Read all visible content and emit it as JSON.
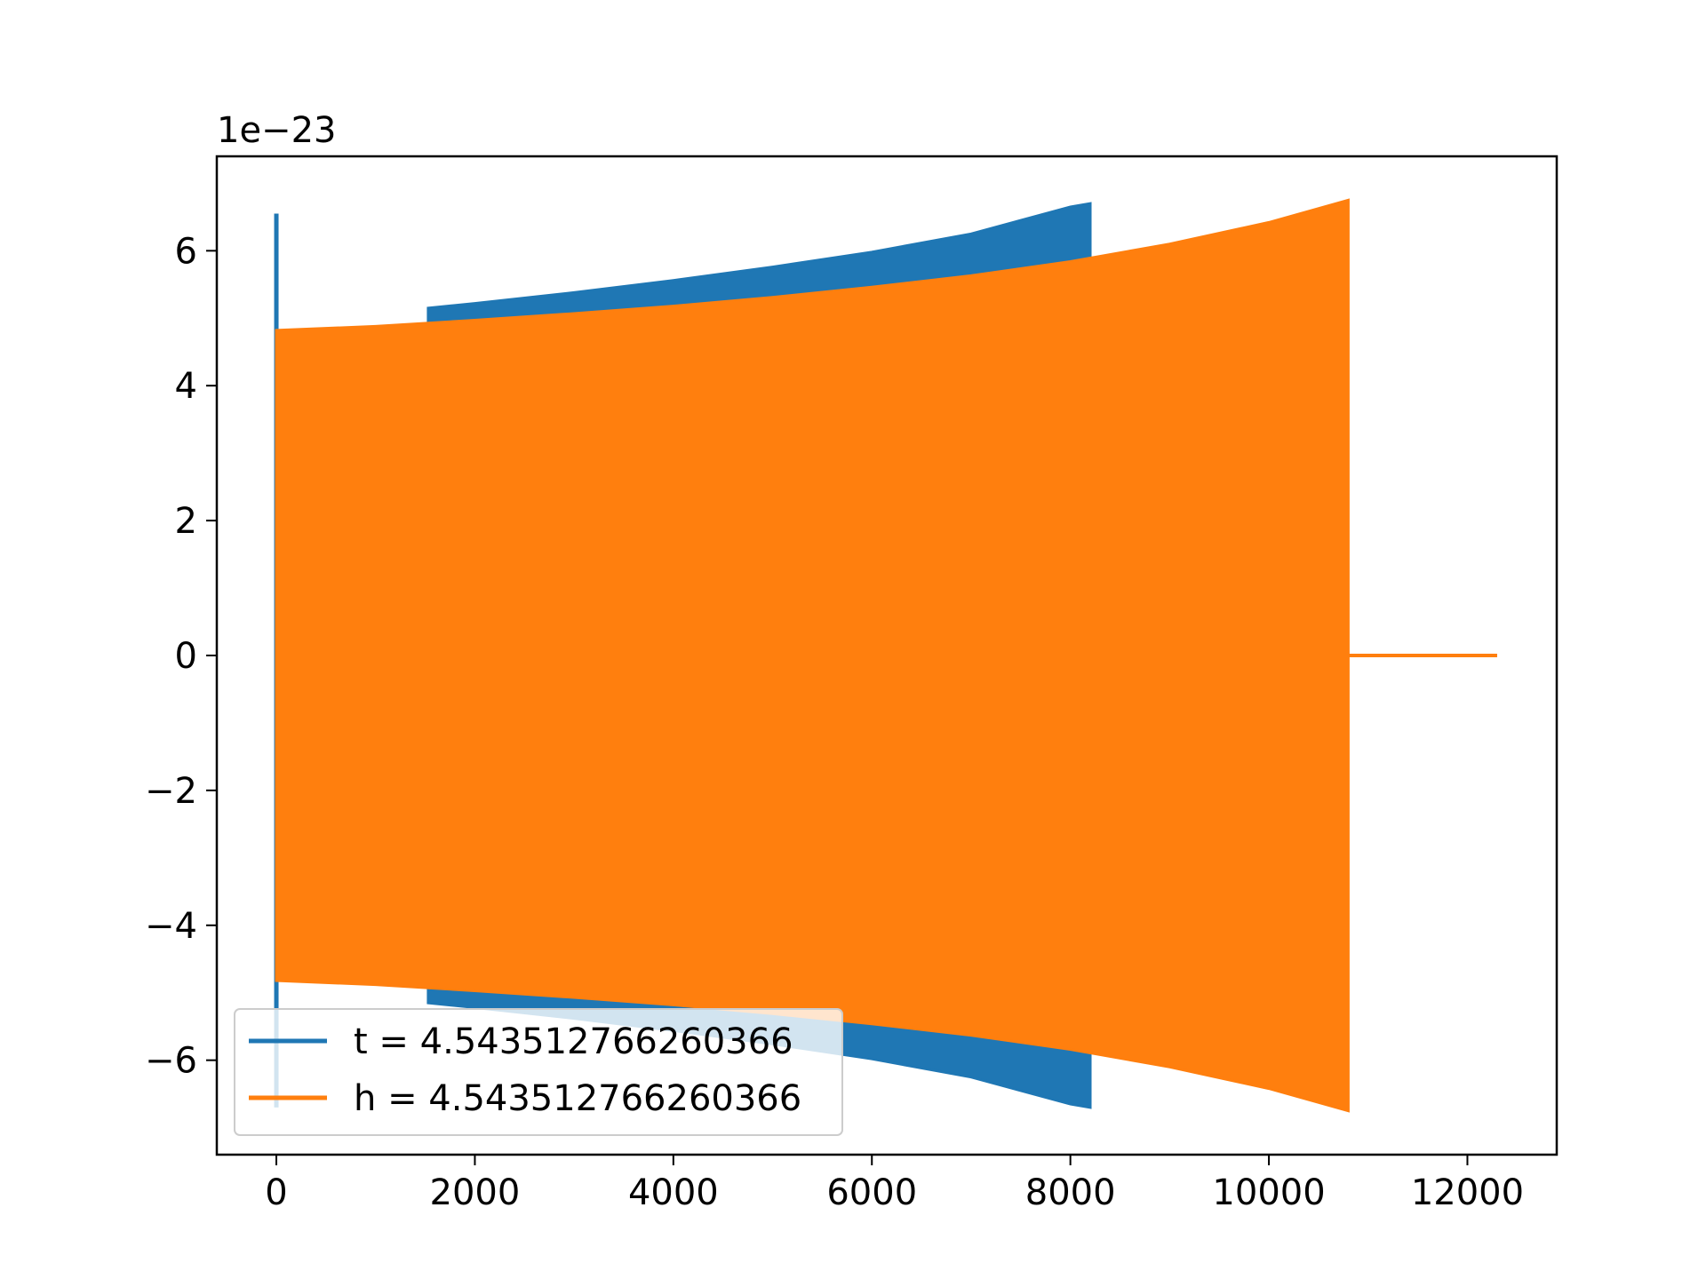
{
  "chart_data": {
    "type": "line",
    "title": "",
    "xlabel": "",
    "ylabel": "",
    "xlim": [
      -600,
      12900
    ],
    "ylim": [
      -7.4,
      7.4
    ],
    "y_offset_label": "1e−23",
    "x_ticks": [
      {
        "value": 0,
        "label": "0"
      },
      {
        "value": 2000,
        "label": "2000"
      },
      {
        "value": 4000,
        "label": "4000"
      },
      {
        "value": 6000,
        "label": "6000"
      },
      {
        "value": 8000,
        "label": "8000"
      },
      {
        "value": 10000,
        "label": "10000"
      },
      {
        "value": 12000,
        "label": "12000"
      }
    ],
    "y_ticks": [
      {
        "value": -6,
        "label": "−6"
      },
      {
        "value": -4,
        "label": "−4"
      },
      {
        "value": -2,
        "label": "−2"
      },
      {
        "value": 0,
        "label": "0"
      },
      {
        "value": 2,
        "label": "2"
      },
      {
        "value": 4,
        "label": "4"
      },
      {
        "value": 6,
        "label": "6"
      }
    ],
    "grid": false,
    "legend_position": "lower-left",
    "series": [
      {
        "name": "t = 4.543512766260366",
        "color": "#1f77b4",
        "envelope": {
          "x": [
            1530,
            2000,
            3000,
            4000,
            5000,
            6000,
            7000,
            8000,
            8200
          ],
          "upper": [
            5.15,
            5.22,
            5.38,
            5.56,
            5.76,
            5.98,
            6.25,
            6.65,
            6.7
          ],
          "lower": [
            -5.15,
            -5.22,
            -5.38,
            -5.56,
            -5.76,
            -5.98,
            -6.25,
            -6.65,
            -6.7
          ]
        },
        "spike": {
          "x": 0,
          "y_top": 6.55,
          "y_bottom": -6.7
        }
      },
      {
        "name": "h = 4.543512766260366",
        "color": "#ff7f0e",
        "envelope": {
          "x": [
            0,
            1000,
            2000,
            3000,
            4000,
            5000,
            6000,
            7000,
            8000,
            9000,
            10000,
            10800
          ],
          "upper": [
            4.82,
            4.88,
            4.97,
            5.07,
            5.18,
            5.31,
            5.46,
            5.63,
            5.84,
            6.1,
            6.42,
            6.75
          ],
          "lower": [
            -4.82,
            -4.88,
            -4.97,
            -5.07,
            -5.18,
            -5.31,
            -5.46,
            -5.63,
            -5.84,
            -6.1,
            -6.42,
            -6.75
          ]
        },
        "tail": {
          "x": [
            10800,
            12300
          ],
          "y": 0
        }
      }
    ]
  }
}
